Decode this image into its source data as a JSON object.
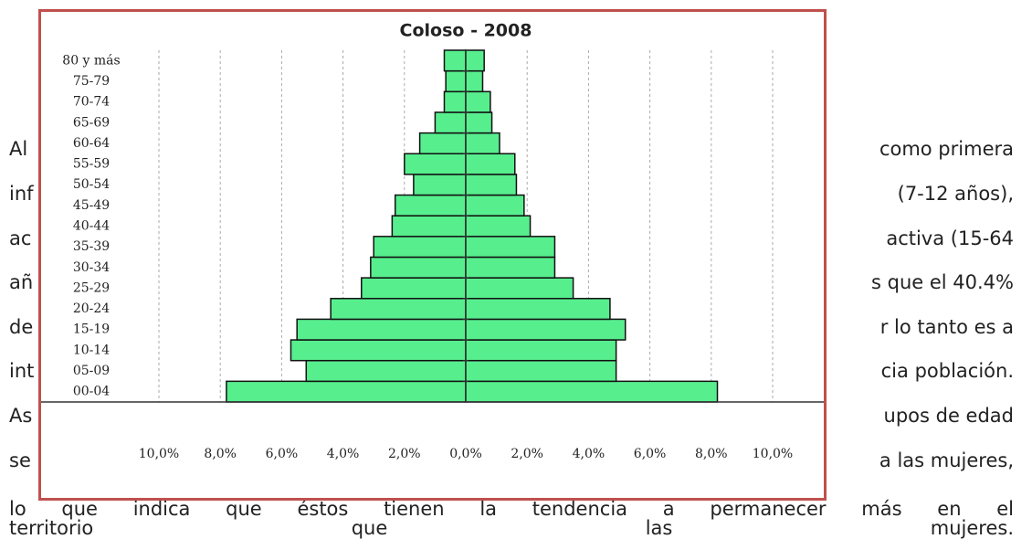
{
  "paragraph": {
    "lines": [
      {
        "left": "Al",
        "right": "como primera"
      },
      {
        "left": "inf",
        "right": "(7-12 años),"
      },
      {
        "left": "ac",
        "right": "activa (15-64"
      },
      {
        "left": "añ",
        "right": "s que el 40.4%"
      },
      {
        "left": "de",
        "right": "r lo tanto es a"
      },
      {
        "left": "int",
        "right": "cia población."
      },
      {
        "left": "As",
        "right": "upos de edad"
      },
      {
        "left": "se",
        "right": "a las mujeres,"
      },
      {
        "text": "lo que indica que éstos tienen la tendencia a permanecer más en el"
      },
      {
        "text": "territorio que las mujeres."
      }
    ]
  },
  "chart_data": {
    "type": "bar",
    "orientation": "horizontal",
    "title": "Coloso - 2008",
    "categories": [
      "00-04",
      "05-09",
      "10-14",
      "15-19",
      "20-24",
      "25-29",
      "30-34",
      "35-39",
      "40-44",
      "45-49",
      "50-54",
      "55-59",
      "60-64",
      "65-69",
      "70-74",
      "75-79",
      "80 y más"
    ],
    "series": [
      {
        "color": "#57ee8e",
        "values": [
          -7.8,
          -5.2,
          -5.7,
          -5.5,
          -4.4,
          -3.4,
          -3.1,
          -3.0,
          -2.4,
          -2.3,
          -1.7,
          -2.0,
          -1.5,
          -1.0,
          -0.7,
          -0.65,
          -0.7
        ]
      },
      {
        "color": "#57ee8e",
        "values": [
          8.2,
          4.9,
          4.9,
          5.2,
          4.7,
          3.5,
          2.9,
          2.9,
          2.1,
          1.9,
          1.65,
          1.6,
          1.1,
          0.85,
          0.8,
          0.55,
          0.6
        ]
      }
    ],
    "xlim": [
      -10,
      10
    ],
    "xticks": [
      {
        "value": -10,
        "label": "10,0%"
      },
      {
        "value": -8,
        "label": "8,0%"
      },
      {
        "value": -6,
        "label": "6,0%"
      },
      {
        "value": -4,
        "label": "4,0%"
      },
      {
        "value": -2,
        "label": "2,0%"
      },
      {
        "value": 0,
        "label": "0,0%"
      },
      {
        "value": 2,
        "label": "2,0%"
      },
      {
        "value": 4,
        "label": "4,0%"
      },
      {
        "value": 6,
        "label": "6,0%"
      },
      {
        "value": 8,
        "label": "8,0%"
      },
      {
        "value": 10,
        "label": "10,0%"
      }
    ],
    "grid": true
  }
}
